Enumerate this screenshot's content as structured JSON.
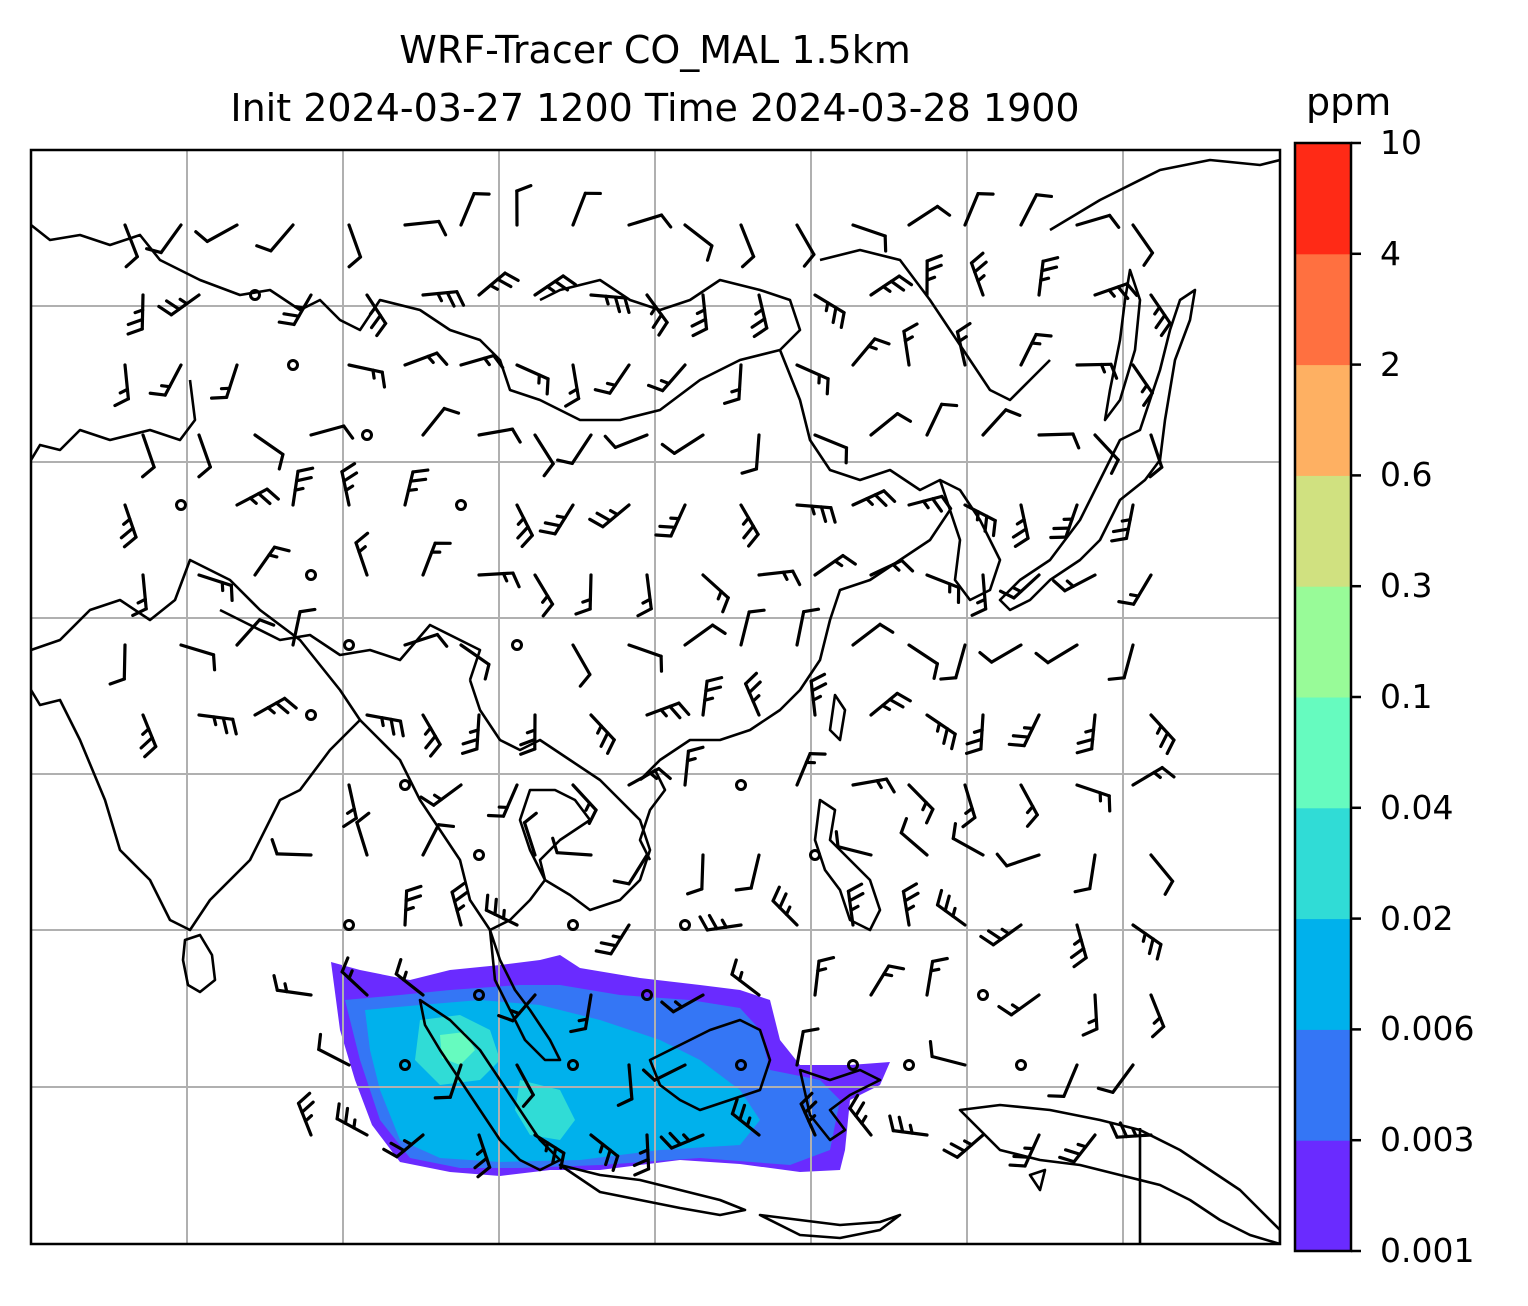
{
  "title_line1": "WRF-Tracer CO_MAL 1.5km",
  "title_line2": "Init 2024-03-27 1200 Time 2024-03-28 1900",
  "colorbar": {
    "unit": "ppm",
    "ticks": [
      "0.001",
      "0.003",
      "0.006",
      "0.02",
      "0.04",
      "0.1",
      "0.3",
      "0.6",
      "2",
      "4",
      "10"
    ],
    "colors": [
      "#6a2bff",
      "#3476f5",
      "#00b1ec",
      "#30dcd6",
      "#66fbbf",
      "#98fb98",
      "#d0e180",
      "#feb062",
      "#ff7040",
      "#ff2a16"
    ]
  },
  "map": {
    "gridline_color": "#b0b0b0",
    "coastline_color": "#000000",
    "barb_color": "#000000"
  }
}
